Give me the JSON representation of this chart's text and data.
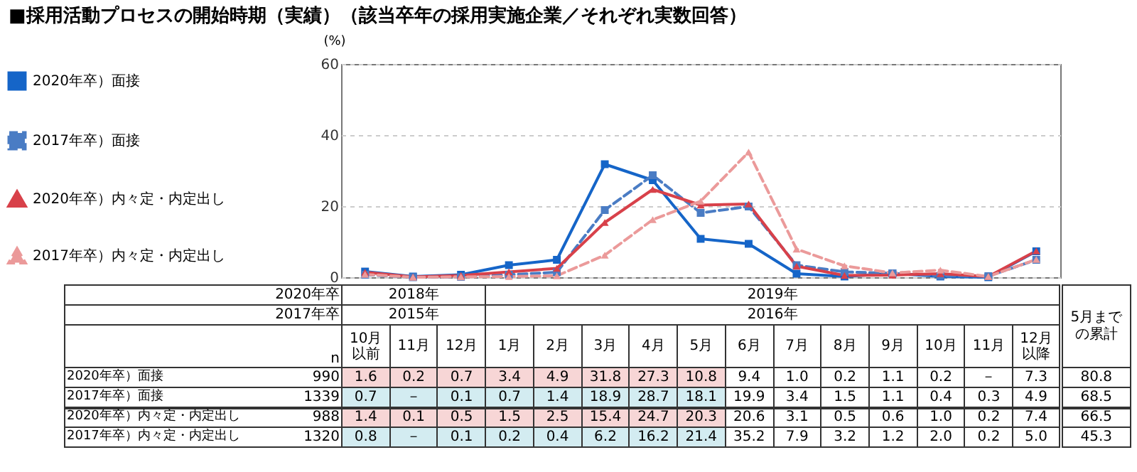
{
  "chart_data": {
    "type": "line",
    "title": "■採用活動プロセスの開始時期（実績）（該当卒年の採用実施企業／それぞれ実数回答）",
    "ylabel": "(%)",
    "categories": [
      "10月以前",
      "11月",
      "12月",
      "1月",
      "2月",
      "3月",
      "4月",
      "5月",
      "6月",
      "7月",
      "8月",
      "9月",
      "10月",
      "11月",
      "12月以降"
    ],
    "series": [
      {
        "name": "2020年卒）面接",
        "color": "#1565c8",
        "line_style": "solid",
        "marker": "square",
        "values": [
          1.6,
          0.2,
          0.7,
          3.4,
          4.9,
          31.8,
          27.3,
          10.8,
          9.4,
          1.0,
          0.2,
          1.1,
          0.2,
          0,
          7.3
        ],
        "value_labels": [
          "1.6",
          "0.2",
          "0.7",
          "3.4",
          "4.9",
          "31.8",
          "27.3",
          "10.8",
          "9.4",
          "1.0",
          "0.2",
          "1.1",
          "0.2",
          "－",
          "7.3"
        ]
      },
      {
        "name": "2017年卒）面接",
        "color": "#4a7cc4",
        "line_style": "dashed",
        "marker": "square",
        "values": [
          0.7,
          0,
          0.1,
          0.7,
          1.4,
          18.9,
          28.7,
          18.1,
          19.9,
          3.4,
          1.5,
          1.1,
          0.4,
          0.3,
          4.9
        ],
        "value_labels": [
          "0.7",
          "－",
          "0.1",
          "0.7",
          "1.4",
          "18.9",
          "28.7",
          "18.1",
          "19.9",
          "3.4",
          "1.5",
          "1.1",
          "0.4",
          "0.3",
          "4.9"
        ]
      },
      {
        "name": "2020年卒）内々定・内定出し",
        "color": "#d8414a",
        "line_style": "solid",
        "marker": "triangle",
        "values": [
          1.4,
          0.1,
          0.5,
          1.5,
          2.5,
          15.4,
          24.7,
          20.3,
          20.6,
          3.1,
          0.5,
          0.6,
          1.0,
          0.2,
          7.4
        ],
        "value_labels": [
          "1.4",
          "0.1",
          "0.5",
          "1.5",
          "2.5",
          "15.4",
          "24.7",
          "20.3",
          "20.6",
          "3.1",
          "0.5",
          "0.6",
          "1.0",
          "0.2",
          "7.4"
        ]
      },
      {
        "name": "2017年卒）内々定・内定出し",
        "color": "#eb9a9a",
        "line_style": "dashed",
        "marker": "triangle",
        "values": [
          0.8,
          0,
          0.1,
          0.2,
          0.4,
          6.2,
          16.2,
          21.4,
          35.2,
          7.9,
          3.2,
          1.2,
          2.0,
          0.2,
          5.0
        ],
        "value_labels": [
          "0.8",
          "－",
          "0.1",
          "0.2",
          "0.4",
          "6.2",
          "16.2",
          "21.4",
          "35.2",
          "7.9",
          "3.2",
          "1.2",
          "2.0",
          "0.2",
          "5.0"
        ]
      }
    ],
    "ylim": [
      0,
      60
    ],
    "yticks": [
      0,
      20,
      40,
      60
    ],
    "grid": "y",
    "legend": "left",
    "tick_labels": "y",
    "annotations": [
      "2020年卒",
      "2018年",
      "2019年",
      "2017年卒",
      "2015年",
      "2016年",
      "n",
      "5月までの累計",
      "990",
      "1339",
      "988",
      "1320",
      "80.8",
      "68.5",
      "66.5",
      "45.3"
    ]
  }
}
